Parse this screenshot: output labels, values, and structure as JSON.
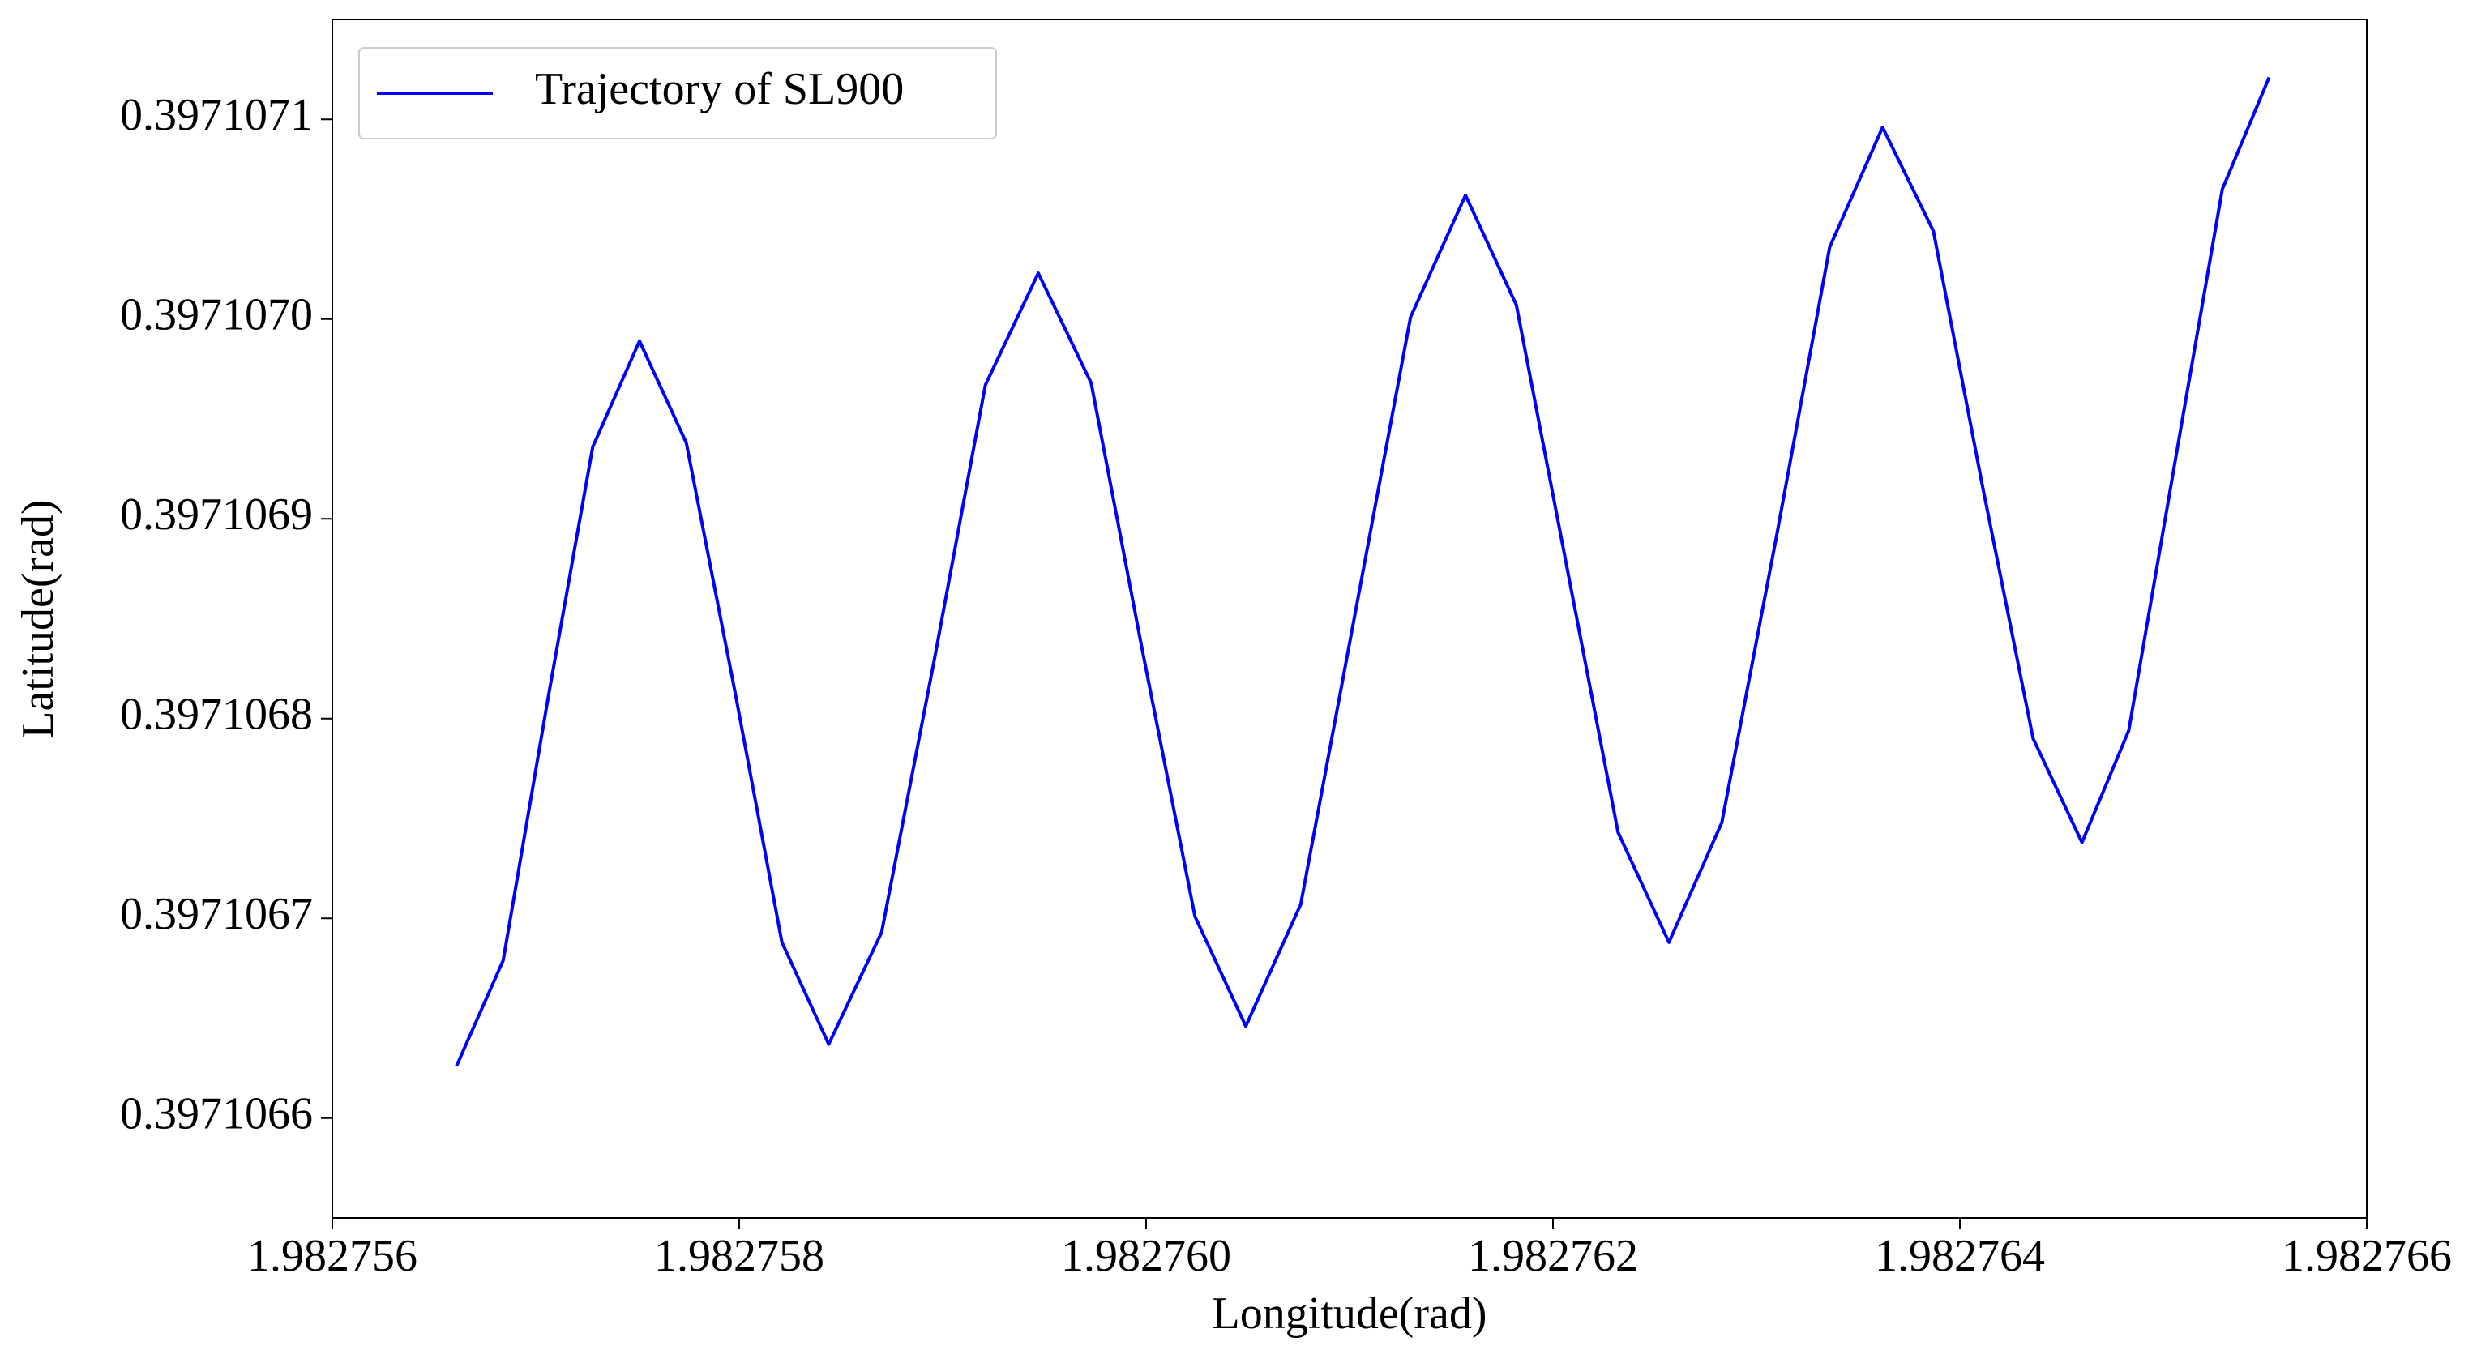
{
  "chart_data": {
    "type": "line",
    "xlabel": "Longitude(rad)",
    "ylabel": "Latitude(rad)",
    "legend": "upper left",
    "x": [
      1.98275661,
      1.98275684,
      1.98275706,
      1.98275728,
      1.98275751,
      1.98275774,
      1.98275798,
      1.98275821,
      1.98275844,
      1.9827587,
      1.98275896,
      1.98275921,
      1.98275947,
      1.98275973,
      1.98275998,
      1.98276024,
      1.98276049,
      1.98276076,
      1.98276103,
      1.9827613,
      1.98276157,
      1.98276182,
      1.98276207,
      1.98276232,
      1.98276257,
      1.98276283,
      1.9827631,
      1.98276336,
      1.98276362,
      1.98276387,
      1.98276411,
      1.98276436,
      1.9827646,
      1.98276483,
      1.98276506,
      1.98276529,
      1.98276552
    ],
    "series": [
      {
        "name": "Trajectory of SL900",
        "color": "#0000ff",
        "values": [
          0.397106626,
          0.397106679,
          0.39710681,
          0.397106936,
          0.397106989,
          0.397106938,
          0.397106813,
          0.397106688,
          0.397106637,
          0.397106693,
          0.39710683,
          0.397106967,
          0.397107023,
          0.397106968,
          0.397106835,
          0.397106701,
          0.397106646,
          0.397106707,
          0.397106854,
          0.397107001,
          0.397107062,
          0.397107007,
          0.397106875,
          0.397106743,
          0.397106688,
          0.397106748,
          0.397106892,
          0.397107036,
          0.397107096,
          0.397107044,
          0.397106917,
          0.39710679,
          0.397106738,
          0.397106794,
          0.39710693,
          0.397107065,
          0.397107121
        ]
      }
    ],
    "xlim": [
      1.982756,
      1.982766
    ],
    "xticks": [
      1.982756,
      1.982758,
      {
        "value": 1.98276,
        "label": "1.982760"
      },
      1.982762,
      1.982764,
      1.982766
    ],
    "ylim": [
      0.39710655,
      0.39710715
    ],
    "yticks": [
      0.3971066,
      0.3971067,
      0.3971068,
      0.3971069,
      {
        "value": 0.397107,
        "label": "0.3971070"
      },
      0.3971071
    ]
  }
}
